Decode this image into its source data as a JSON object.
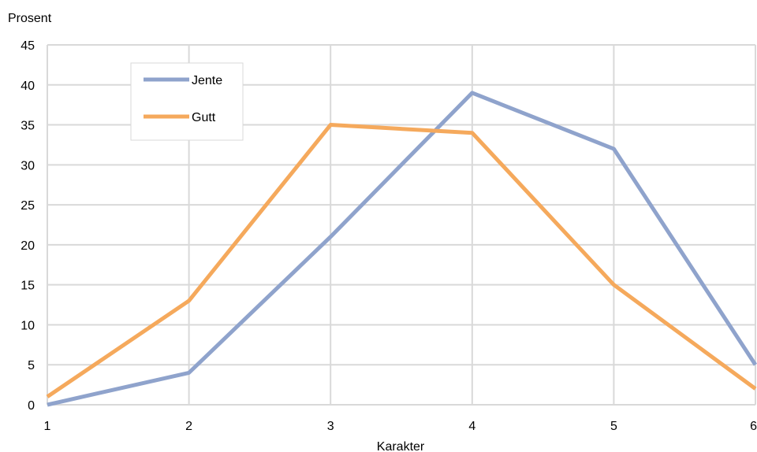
{
  "chart_data": {
    "type": "line",
    "title": "",
    "xlabel": "Karakter",
    "ylabel": "Prosent",
    "x": [
      1,
      2,
      3,
      4,
      5,
      6
    ],
    "xlim": [
      1,
      6
    ],
    "ylim": [
      0,
      45
    ],
    "y_ticks": [
      0,
      5,
      10,
      15,
      20,
      25,
      30,
      35,
      40,
      45
    ],
    "x_tick_labels": [
      "1",
      "2",
      "3",
      "4",
      "5",
      "6"
    ],
    "grid": true,
    "legend_position": "top-left",
    "series": [
      {
        "name": "Jente",
        "color": "#8FA3CC",
        "values": [
          0,
          4,
          21,
          39,
          32,
          5
        ]
      },
      {
        "name": "Gutt",
        "color": "#F5A95C",
        "values": [
          1,
          13,
          35,
          34,
          15,
          2
        ]
      }
    ]
  }
}
